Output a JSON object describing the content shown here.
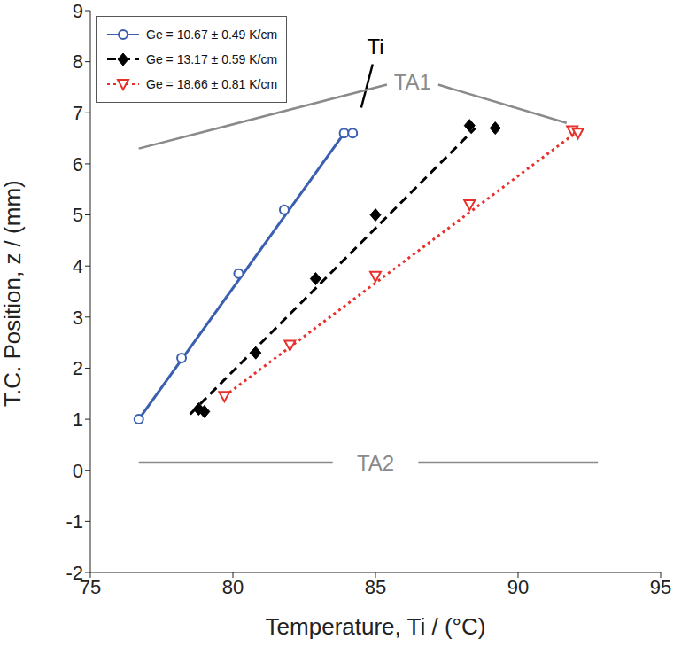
{
  "chart_data": {
    "type": "scatter",
    "x_label": "Temperature, Ti  / (°C)",
    "y_label": "T.C. Position, z / (mm)",
    "xlim": [
      75,
      95
    ],
    "xticks": [
      75,
      80,
      85,
      90,
      95
    ],
    "ylim": [
      -2,
      9
    ],
    "yticks": [
      -2,
      -1,
      0,
      1,
      2,
      3,
      4,
      5,
      6,
      7,
      8,
      9
    ],
    "grid": false,
    "legend": "upper left",
    "series": [
      {
        "name": "Ge = 10.67 ± 0.49 K/cm",
        "color": "#3a5fb0",
        "marker": "circle",
        "line_style": "solid",
        "x": [
          76.7,
          78.2,
          80.2,
          81.8,
          83.9,
          84.2
        ],
        "values": [
          1.0,
          2.2,
          3.85,
          5.1,
          6.6,
          6.6
        ],
        "fit": {
          "x": [
            76.7,
            83.9
          ],
          "values": [
            1.0,
            6.6
          ]
        }
      },
      {
        "name": "Ge = 13.17 ± 0.59 K/cm",
        "color": "#000000",
        "marker": "diamond",
        "line_style": "dashed",
        "x": [
          78.8,
          79.0,
          80.8,
          82.9,
          85.0,
          88.3,
          89.2
        ],
        "values": [
          1.2,
          1.15,
          2.3,
          3.75,
          5.0,
          6.75,
          6.7
        ],
        "fit": {
          "x": [
            78.5,
            88.5
          ],
          "values": [
            1.1,
            6.7
          ]
        }
      },
      {
        "name": "Ge = 18.66 ± 0.81 K/cm",
        "color": "#e8302a",
        "marker": "triangle",
        "line_style": "dotted",
        "x": [
          79.7,
          82.0,
          85.0,
          88.3,
          91.9,
          92.1
        ],
        "values": [
          1.45,
          2.45,
          3.8,
          5.2,
          6.65,
          6.6
        ],
        "fit": {
          "x": [
            79.7,
            92.0
          ],
          "values": [
            1.45,
            6.6
          ]
        }
      }
    ],
    "annotations": [
      {
        "text": "Ti",
        "x": 85.0,
        "y": 8.3,
        "color": "#000000",
        "arrows": [
          {
            "from": [
              84.9,
              7.95
            ],
            "to": [
              84.5,
              7.1
            ]
          }
        ]
      },
      {
        "text": "TA1",
        "x": 86.3,
        "y": 7.6,
        "color": "#8a8a8a",
        "arrows": [
          {
            "from": [
              85.4,
              7.55
            ],
            "to": [
              76.7,
              6.3
            ]
          },
          {
            "from": [
              87.2,
              7.55
            ],
            "to": [
              91.7,
              6.8
            ]
          }
        ]
      },
      {
        "text": "TA2",
        "x": 85.0,
        "y": 0.15,
        "color": "#8a8a8a",
        "arrows": [
          {
            "from": [
              83.5,
              0.15
            ],
            "to": [
              76.7,
              0.15
            ]
          },
          {
            "from": [
              86.5,
              0.15
            ],
            "to": [
              92.8,
              0.15
            ]
          }
        ]
      }
    ]
  }
}
